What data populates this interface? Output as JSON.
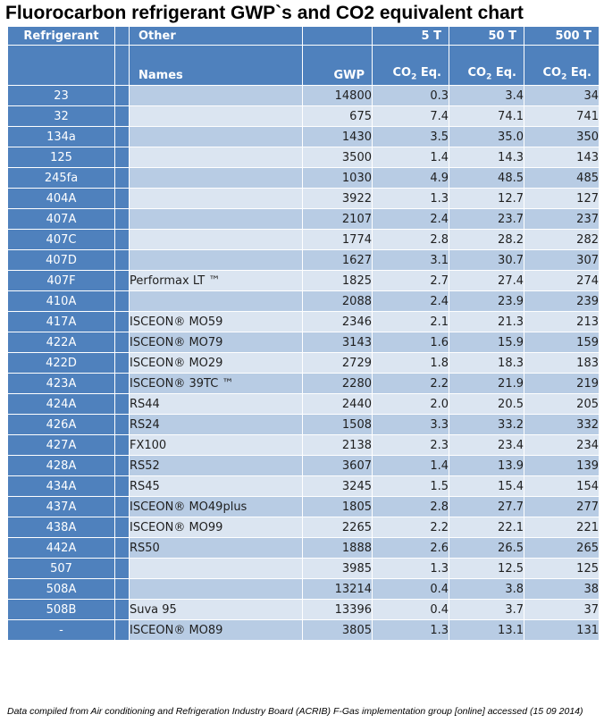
{
  "title": "Fluorocarbon refrigerant GWP`s and CO2 equivalent chart",
  "header": {
    "refrigerant": "Refrigerant",
    "other": "Other",
    "names": "Names",
    "gwp": "GWP",
    "t5": "5 T",
    "t50": "50 T",
    "t500": "500 T",
    "co2_prefix": "CO",
    "co2_sub": "2",
    "co2_suffix": " Eq."
  },
  "rows": [
    {
      "refrigerant": "23",
      "name": "",
      "gwp": "14800",
      "t5": "0.3",
      "t50": "3.4",
      "t500": "34"
    },
    {
      "refrigerant": "32",
      "name": "",
      "gwp": "675",
      "t5": "7.4",
      "t50": "74.1",
      "t500": "741"
    },
    {
      "refrigerant": "134a",
      "name": "",
      "gwp": "1430",
      "t5": "3.5",
      "t50": "35.0",
      "t500": "350"
    },
    {
      "refrigerant": "125",
      "name": "",
      "gwp": "3500",
      "t5": "1.4",
      "t50": "14.3",
      "t500": "143"
    },
    {
      "refrigerant": "245fa",
      "name": "",
      "gwp": "1030",
      "t5": "4.9",
      "t50": "48.5",
      "t500": "485"
    },
    {
      "refrigerant": "404A",
      "name": "",
      "gwp": "3922",
      "t5": "1.3",
      "t50": "12.7",
      "t500": "127"
    },
    {
      "refrigerant": "407A",
      "name": "",
      "gwp": "2107",
      "t5": "2.4",
      "t50": "23.7",
      "t500": "237"
    },
    {
      "refrigerant": "407C",
      "name": "",
      "gwp": "1774",
      "t5": "2.8",
      "t50": "28.2",
      "t500": "282"
    },
    {
      "refrigerant": "407D",
      "name": "",
      "gwp": "1627",
      "t5": "3.1",
      "t50": "30.7",
      "t500": "307"
    },
    {
      "refrigerant": "407F",
      "name": "Performax LT ™",
      "gwp": "1825",
      "t5": "2.7",
      "t50": "27.4",
      "t500": "274"
    },
    {
      "refrigerant": "410A",
      "name": "",
      "gwp": "2088",
      "t5": "2.4",
      "t50": "23.9",
      "t500": "239"
    },
    {
      "refrigerant": "417A",
      "name": "ISCEON® MO59",
      "gwp": "2346",
      "t5": "2.1",
      "t50": "21.3",
      "t500": "213"
    },
    {
      "refrigerant": "422A",
      "name": "ISCEON® MO79",
      "gwp": "3143",
      "t5": "1.6",
      "t50": "15.9",
      "t500": "159"
    },
    {
      "refrigerant": "422D",
      "name": "ISCEON® MO29",
      "gwp": "2729",
      "t5": "1.8",
      "t50": "18.3",
      "t500": "183"
    },
    {
      "refrigerant": "423A",
      "name": "ISCEON® 39TC ™",
      "gwp": "2280",
      "t5": "2.2",
      "t50": "21.9",
      "t500": "219"
    },
    {
      "refrigerant": "424A",
      "name": "RS44",
      "gwp": "2440",
      "t5": "2.0",
      "t50": "20.5",
      "t500": "205"
    },
    {
      "refrigerant": "426A",
      "name": "RS24",
      "gwp": "1508",
      "t5": "3.3",
      "t50": "33.2",
      "t500": "332"
    },
    {
      "refrigerant": "427A",
      "name": "FX100",
      "gwp": "2138",
      "t5": "2.3",
      "t50": "23.4",
      "t500": "234"
    },
    {
      "refrigerant": "428A",
      "name": "RS52",
      "gwp": "3607",
      "t5": "1.4",
      "t50": "13.9",
      "t500": "139"
    },
    {
      "refrigerant": "434A",
      "name": "RS45",
      "gwp": "3245",
      "t5": "1.5",
      "t50": "15.4",
      "t500": "154"
    },
    {
      "refrigerant": "437A",
      "name": "ISCEON® MO49plus",
      "gwp": "1805",
      "t5": "2.8",
      "t50": "27.7",
      "t500": "277"
    },
    {
      "refrigerant": "438A",
      "name": "ISCEON® MO99",
      "gwp": "2265",
      "t5": "2.2",
      "t50": "22.1",
      "t500": "221"
    },
    {
      "refrigerant": "442A",
      "name": "RS50",
      "gwp": "1888",
      "t5": "2.6",
      "t50": "26.5",
      "t500": "265"
    },
    {
      "refrigerant": "507",
      "name": "",
      "gwp": "3985",
      "t5": "1.3",
      "t50": "12.5",
      "t500": "125"
    },
    {
      "refrigerant": "508A",
      "name": "",
      "gwp": "13214",
      "t5": "0.4",
      "t50": "3.8",
      "t500": "38"
    },
    {
      "refrigerant": "508B",
      "name": "Suva 95",
      "gwp": "13396",
      "t5": "0.4",
      "t50": "3.7",
      "t500": "37"
    },
    {
      "refrigerant": "-",
      "name": "ISCEON® MO89",
      "gwp": "3805",
      "t5": "1.3",
      "t50": "13.1",
      "t500": "131"
    }
  ],
  "footnote": "Data compiled from Air conditioning and Refrigeration Industry Board (ACRIB) F-Gas implementation group [online] accessed (15 09 2014)",
  "colors": {
    "header_blue": "#4f81bd",
    "row_dark": "#b8cce4",
    "row_light": "#dbe5f1"
  }
}
